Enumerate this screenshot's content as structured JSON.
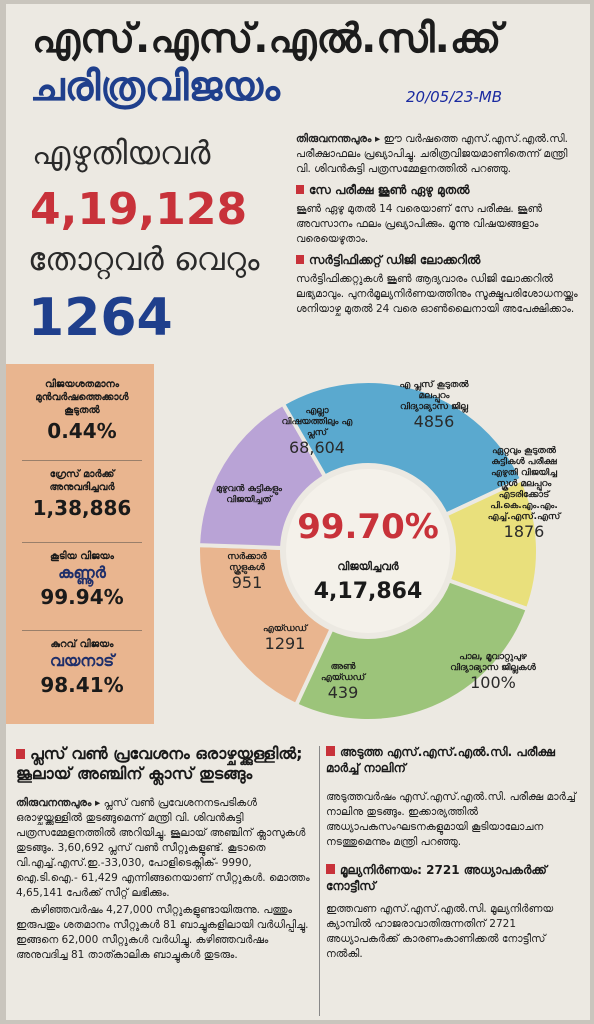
{
  "headline": {
    "line1": "എസ്.എസ്.എൽ.സി.ക്ക്",
    "line2": "ചരിത്രവിജയം",
    "handwritten_note": "20/05/23-MB"
  },
  "left_figures": {
    "wrote_label": "എഴുതിയവർ",
    "wrote_value": "4,19,128",
    "failed_label": "തോറ്റവർ വെറും",
    "failed_value": "1264"
  },
  "intro": {
    "lead": "തിരുവനന്തപുരം ▸",
    "text": "ഈ വർഷത്തെ എസ്.എസ്.എൽ.സി. പരീക്ഷാഫലം പ്രഖ്യാപിച്ചു. ചരിത്രവിജയമാണിതെന്ന് മന്ത്രി വി. ശിവൻകുട്ടി പത്രസമ്മേളനത്തിൽ പറഞ്ഞു."
  },
  "say_exam": {
    "heading": "സേ പരീക്ഷ ജൂൺ ഏഴു മുതൽ",
    "text": "ജൂൺ ഏഴു മുതൽ 14 വരെയാണ് സേ പരീക്ഷ. ജൂൺ അവസാനം ഫലം പ്രഖ്യാപിക്കും. മൂന്നു വിഷയങ്ങളാം വരെയെഴുതാം."
  },
  "certificate": {
    "heading": "സർട്ടിഫിക്കറ്റ് ഡിജി ലോക്കറിൽ",
    "text": "സർട്ടിഫിക്കറ്റുകൾ ജൂൺ ആദ്യവാരം ഡിജി ലോക്കറിൽ ലഭ്യമാവും. പുനർമൂല്യനിർണയത്തിനും സൂക്ഷ്മപരിശോധനയ്ക്കും ശനിയാഴ്ച മുതൽ 24 വരെ ഓൺലൈനായി അപേക്ഷിക്കാം."
  },
  "side_stats": [
    {
      "label": "വിജയശതമാനം മുൻവർഷത്തെക്കാൾ കൂടുതൽ",
      "value": "0.44%"
    },
    {
      "label": "ഗ്രേസ് മാർക്ക് അനുവദിച്ചവർ",
      "value": "1,38,886"
    },
    {
      "label": "കൂടിയ വിജയം",
      "place": "കണ്ണൂർ",
      "value": "99.94%"
    },
    {
      "label": "കുറവ് വിജയം",
      "place": "വയനാട്",
      "value": "98.41%"
    }
  ],
  "donut": {
    "center_value": "99.70%",
    "center_label": "വിജയിച്ചവർ",
    "center_count": "4,17,864",
    "colors": {
      "tan": "#e9b58f",
      "purple": "#b9a3d6",
      "blue": "#5aa9cf",
      "yellow": "#e9e07c",
      "green": "#9cc47a",
      "center": "#f4f1ea"
    },
    "segments": [
      {
        "label": "എല്ലാ വിഷയത്തിലും എ പ്ലസ്",
        "value": "68,604"
      },
      {
        "label": "എ പ്ലസ് കൂടുതൽ മലപ്പുറം വിദ്യാഭ്യാസ ജില്ല",
        "value": "4856"
      },
      {
        "label": "ഏറ്റവും കൂടുതൽ കുട്ടികൾ പരീക്ഷ എഴുതി വിജയിച്ച സ്കൂൾ മലപ്പുറം എടരിക്കോട് പി.കെ.എം.എം. എച്ച്.എസ്.എസ്",
        "value": "1876"
      },
      {
        "label": "പാല, മൂവാറ്റുപുഴ വിദ്യാഭ്യാസ ജില്ലകൾ",
        "value": "100%"
      },
      {
        "label": "അൺ എയ്ഡഡ്",
        "value": "439"
      },
      {
        "label": "എയ്ഡഡ്",
        "value": "1291"
      },
      {
        "label": "സർക്കാർ സ്കൂളുകൾ",
        "value": "951"
      },
      {
        "label": "മുഴുവൻ കുട്ടികളും വിജയിച്ചത്",
        "value": ""
      }
    ]
  },
  "plus_one": {
    "heading": "പ്ലസ് വൺ പ്രവേശനം ഒരാഴ്ചയ്ക്കുള്ളിൽ; ജൂലായ് അഞ്ചിന് ക്ലാസ് തുടങ്ങും",
    "lead": "തിരുവനന്തപുരം ▸",
    "text1": "പ്ലസ് വൺ പ്രവേശനനടപടികൾ ഒരാഴ്ചയ്ക്കുള്ളിൽ തുടങ്ങുമെന്ന് മന്ത്രി വി. ശിവൻകുട്ടി പത്രസമ്മേളനത്തിൽ അറിയിച്ചു. ജൂലായ് അഞ്ചിന് ക്ലാസുകൾ തുടങ്ങും. 3,60,692 പ്ലസ് വൺ സീറ്റുകളുണ്ട്. കൂടാതെ വി.എച്ച്.എസ്.ഇ.-33,030, പോളിടെക്നിക്- 9990, ഐ.ടി.ഐ.- 61,429 എന്നിങ്ങനെയാണ് സീറ്റുകൾ. മൊത്തം 4,65,141 പേർക്ക് സീറ്റ് ലഭിക്കും.",
    "text2": "കഴിഞ്ഞവർഷം 4,27,000 സീറ്റുകളുണ്ടായിരുന്നു. പത്തും ഇരുപതും ശതമാനം സീറ്റുകൾ 81 ബാച്ചുകളിലായി വർധിപ്പിച്ചു. ഇങ്ങനെ 62,000 സീറ്റുകൾ വർധിച്ചു. കഴിഞ്ഞവർഷം അനുവദിച്ച 81 താത്കാലിക ബാച്ചുകൾ തുടരും."
  },
  "next_exam": {
    "heading": "അടുത്ത എസ്.എസ്.എൽ.സി. പരീക്ഷ മാർച്ച് നാലിന്",
    "text": "അടുത്തവർഷം എസ്.എസ്.എൽ.സി. പരീക്ഷ മാർച്ച് നാലിനു തുടങ്ങും. ഇക്കാര്യത്തിൽ അധ്യാപകസംഘടനകളുമായി കൂടിയാലോചന നടത്തുമെന്നും മന്ത്രി പറഞ്ഞു."
  },
  "evaluation": {
    "heading": "മൂല്യനിർണയം: 2721 അധ്യാപകർക്ക് നോട്ടീസ്",
    "text": "ഇത്തവണ എസ്.എസ്.എൽ.സി. മൂല്യനിർണയ ക്യാമ്പിൽ ഹാജരാവാതിരുന്നതിന് 2721 അധ്യാപകർക്ക് കാരണംകാണിക്കൽ നോട്ടീസ് നൽകി."
  }
}
